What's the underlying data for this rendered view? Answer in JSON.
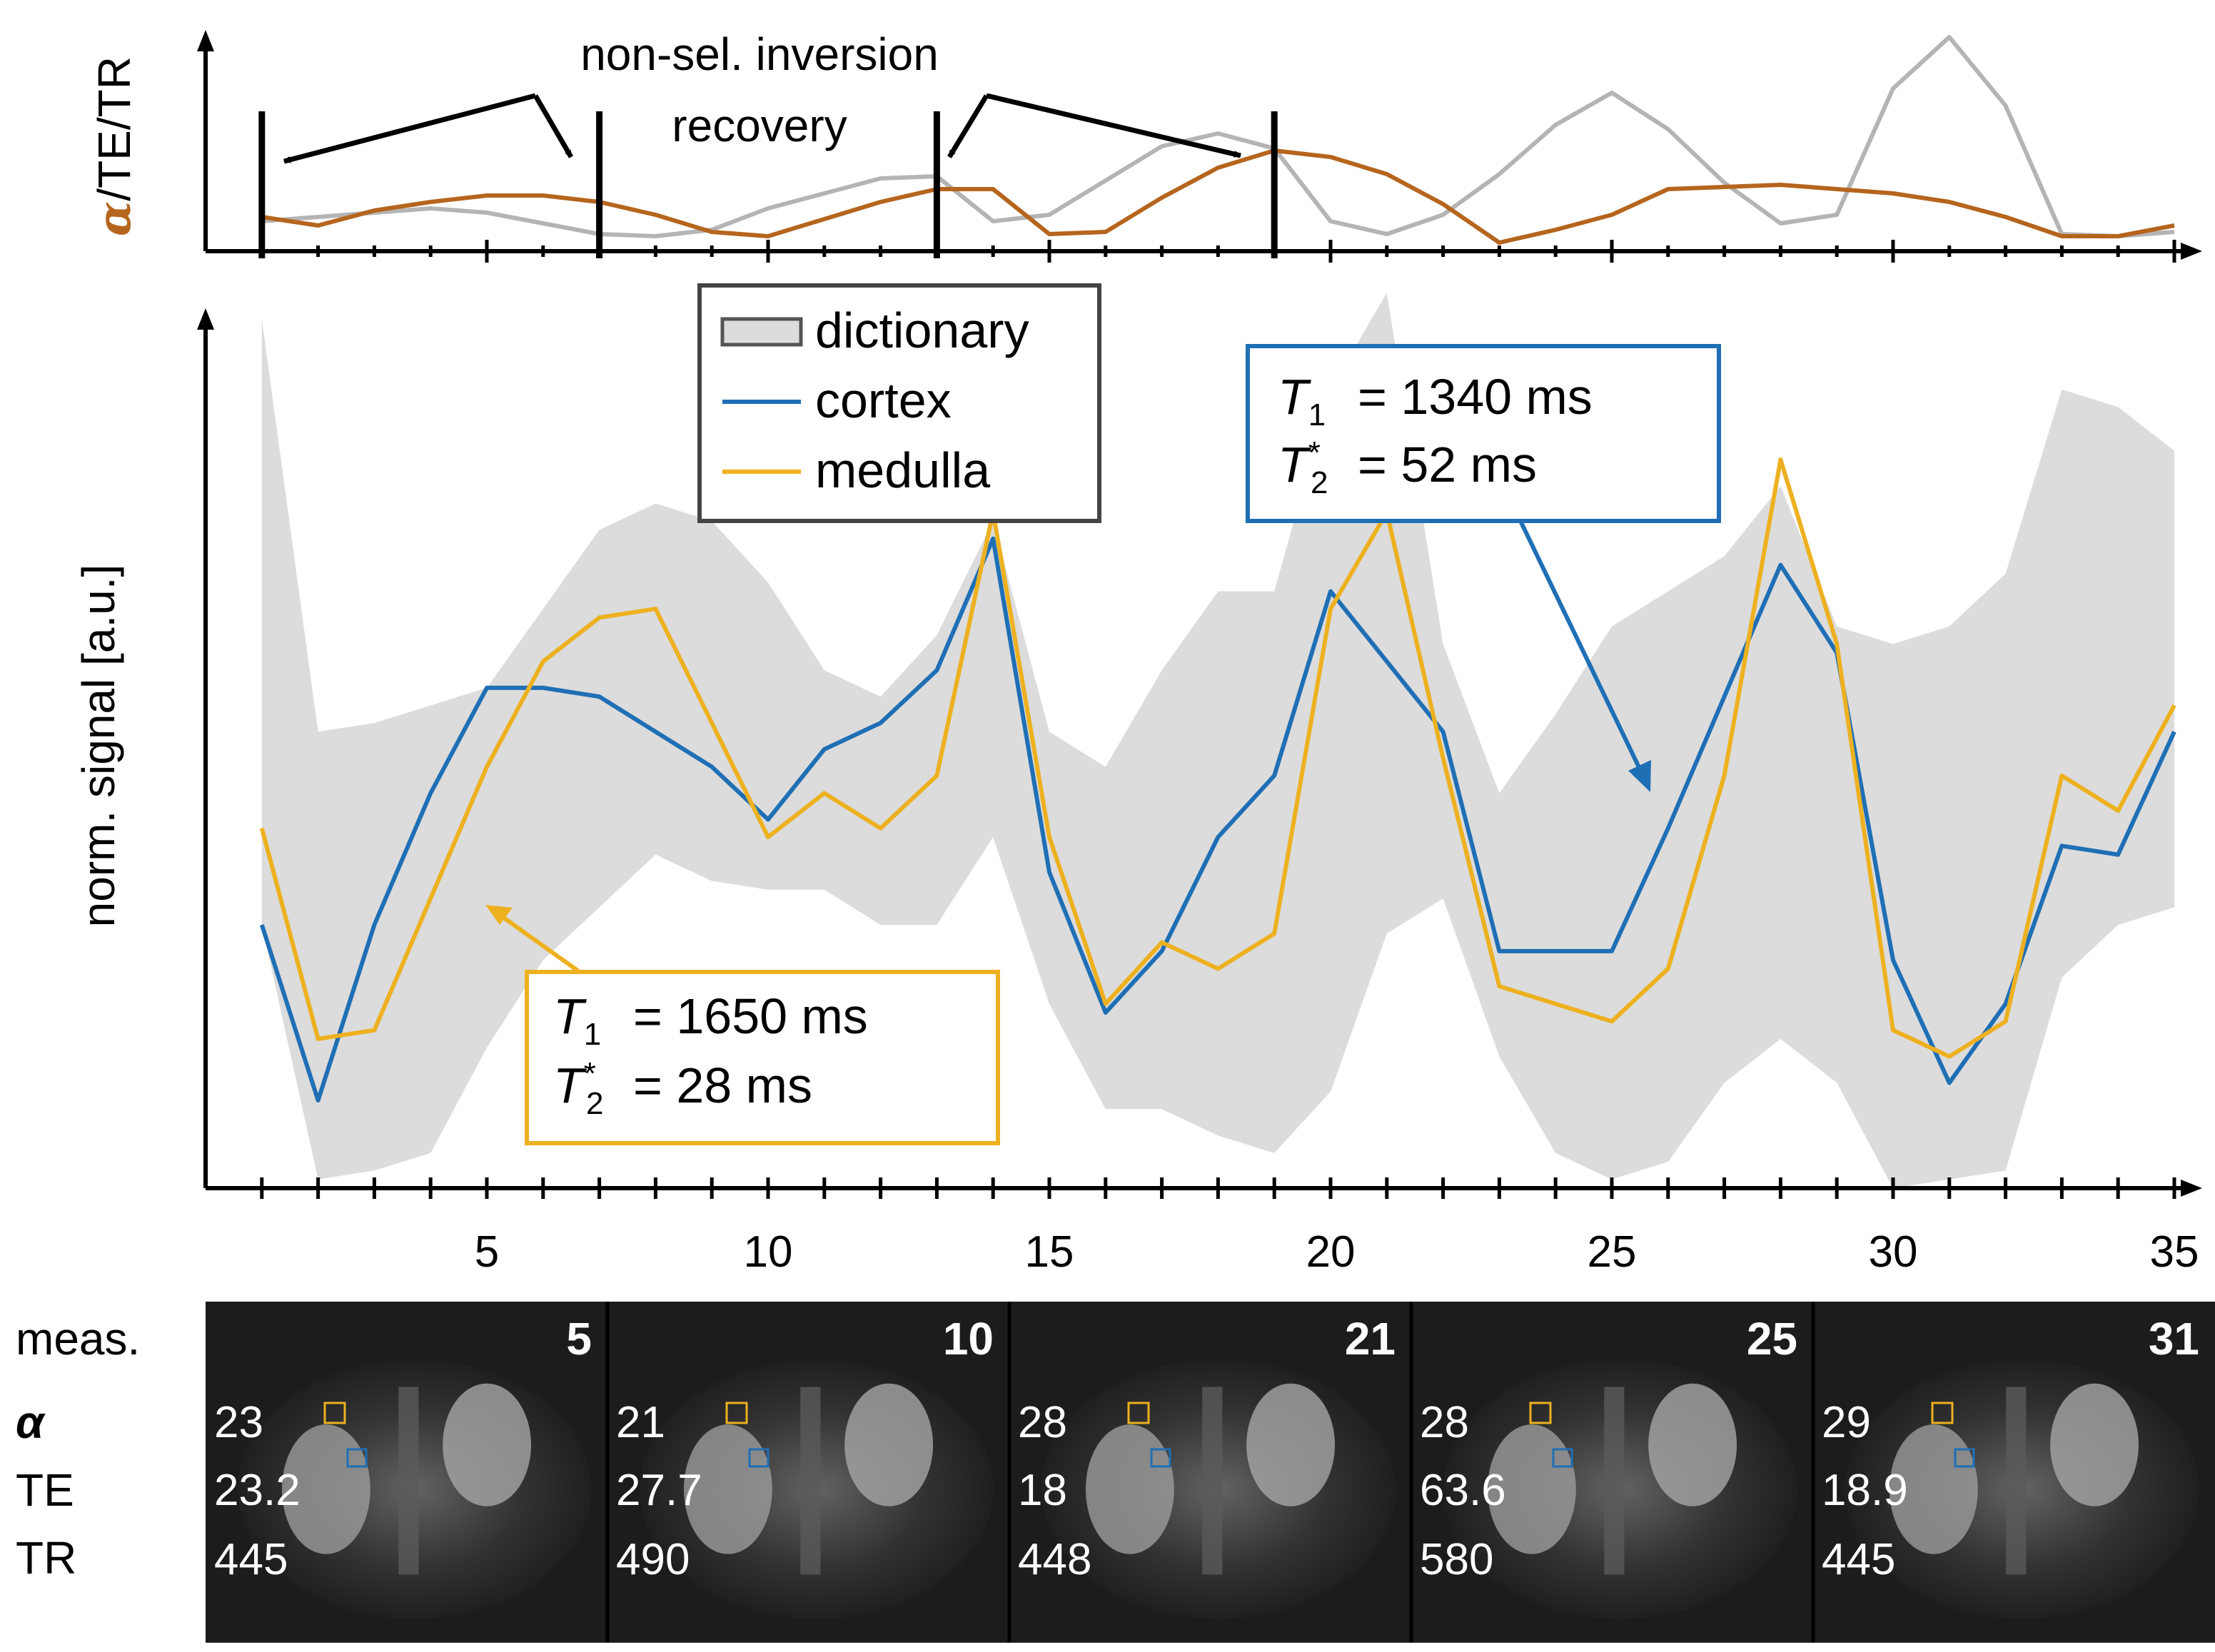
{
  "chart_data": [
    {
      "type": "line",
      "title": "",
      "ylabel_greek": "α",
      "ylabel_rest": "/TE/TR",
      "x": [
        1,
        2,
        3,
        4,
        5,
        6,
        7,
        8,
        9,
        10,
        11,
        12,
        13,
        14,
        15,
        16,
        17,
        18,
        19,
        20,
        21,
        22,
        23,
        24,
        25,
        26,
        27,
        28,
        29,
        30,
        31,
        32,
        33,
        34,
        35
      ],
      "ylim": [
        0,
        1
      ],
      "series": [
        {
          "name": "alpha",
          "color": "#B5651D",
          "values": [
            0.16,
            0.12,
            0.19,
            0.23,
            0.26,
            0.26,
            0.23,
            0.17,
            0.09,
            0.07,
            0.15,
            0.23,
            0.29,
            0.29,
            0.08,
            0.09,
            0.25,
            0.39,
            0.47,
            0.44,
            0.36,
            0.22,
            0.04,
            0.1,
            0.17,
            0.29,
            0.3,
            0.31,
            0.29,
            0.27,
            0.23,
            0.16,
            0.07,
            0.07,
            0.12
          ]
        },
        {
          "name": "TE/TR",
          "color": "#b4b4b4",
          "values": [
            0.14,
            0.16,
            0.18,
            0.2,
            0.18,
            0.13,
            0.08,
            0.07,
            0.1,
            0.2,
            0.27,
            0.34,
            0.35,
            0.14,
            0.17,
            0.33,
            0.49,
            0.55,
            0.48,
            0.14,
            0.08,
            0.17,
            0.36,
            0.59,
            0.74,
            0.57,
            0.32,
            0.13,
            0.17,
            0.76,
            1.0,
            0.68,
            0.08,
            0.07,
            0.09
          ]
        }
      ],
      "markers_x": [
        1,
        7,
        13,
        19
      ],
      "annotation_line1": "non-sel. inversion",
      "annotation_line2": "recovery"
    },
    {
      "type": "line",
      "title": "",
      "xlabel": "",
      "ylabel": "norm. signal [a.u.]",
      "x": [
        1,
        2,
        3,
        4,
        5,
        6,
        7,
        8,
        9,
        10,
        11,
        12,
        13,
        14,
        15,
        16,
        17,
        18,
        19,
        20,
        21,
        22,
        23,
        24,
        25,
        26,
        27,
        28,
        29,
        30,
        31,
        32,
        33,
        34,
        35
      ],
      "xticks": [
        5,
        10,
        15,
        20,
        25,
        30,
        35
      ],
      "xlim": [
        0,
        35
      ],
      "ylim": [
        0,
        1
      ],
      "band": {
        "name": "dictionary",
        "color": "#dcdcdc",
        "upper": [
          0.99,
          0.52,
          0.53,
          0.55,
          0.57,
          0.66,
          0.75,
          0.78,
          0.76,
          0.69,
          0.59,
          0.56,
          0.63,
          0.76,
          0.52,
          0.48,
          0.59,
          0.68,
          0.68,
          0.91,
          1.02,
          0.62,
          0.45,
          0.54,
          0.64,
          0.68,
          0.72,
          0.8,
          0.64,
          0.62,
          0.64,
          0.7,
          0.91,
          0.89,
          0.84
        ],
        "lower": [
          0.3,
          0.01,
          0.02,
          0.04,
          0.16,
          0.26,
          0.32,
          0.38,
          0.35,
          0.34,
          0.34,
          0.3,
          0.3,
          0.4,
          0.21,
          0.09,
          0.09,
          0.06,
          0.04,
          0.11,
          0.29,
          0.33,
          0.15,
          0.04,
          0.01,
          0.03,
          0.12,
          0.17,
          0.12,
          0.0,
          0.01,
          0.02,
          0.24,
          0.3,
          0.32
        ]
      },
      "series": [
        {
          "name": "cortex",
          "color": "#1f6fb5",
          "values": [
            0.3,
            0.1,
            0.3,
            0.45,
            0.57,
            0.57,
            0.56,
            0.52,
            0.48,
            0.42,
            0.5,
            0.53,
            0.59,
            0.74,
            0.36,
            0.2,
            0.27,
            0.4,
            0.47,
            0.68,
            0.6,
            0.52,
            0.27,
            0.27,
            0.27,
            0.41,
            0.56,
            0.71,
            0.61,
            0.26,
            0.12,
            0.21,
            0.39,
            0.38,
            0.52
          ]
        },
        {
          "name": "medulla",
          "color": "#EDB120",
          "values": [
            0.41,
            0.17,
            0.18,
            0.33,
            0.48,
            0.6,
            0.65,
            0.66,
            0.53,
            0.4,
            0.45,
            0.41,
            0.47,
            0.77,
            0.4,
            0.21,
            0.28,
            0.25,
            0.29,
            0.66,
            0.77,
            0.49,
            0.23,
            0.21,
            0.19,
            0.25,
            0.47,
            0.83,
            0.62,
            0.18,
            0.15,
            0.19,
            0.47,
            0.43,
            0.55
          ]
        }
      ],
      "legend": {
        "position": "top-center",
        "entries": [
          "dictionary",
          "cortex",
          "medulla"
        ]
      },
      "annotations": [
        {
          "color": "#1f6fb5",
          "symbol_a": "T",
          "sub_a": "1",
          "value_a": "= 1340 ms",
          "symbol_b": "T",
          "sub_b": "2",
          "sup_b": "*",
          "value_b": "= 52 ms"
        },
        {
          "color": "#EDB120",
          "symbol_a": "T",
          "sub_a": "1",
          "value_a": "= 1650 ms",
          "symbol_b": "T",
          "sub_b": "2",
          "sup_b": "*",
          "value_b": "= 28 ms"
        }
      ]
    }
  ],
  "image_strip": {
    "row_labels": {
      "meas": "meas.",
      "alpha": "α",
      "te": "TE",
      "tr": "TR"
    },
    "panels": [
      {
        "meas": "5",
        "alpha": "23",
        "te": "23.2",
        "tr": "445"
      },
      {
        "meas": "10",
        "alpha": "21",
        "te": "27.7",
        "tr": "490"
      },
      {
        "meas": "21",
        "alpha": "28",
        "te": "18",
        "tr": "448"
      },
      {
        "meas": "25",
        "alpha": "28",
        "te": "63.6",
        "tr": "580"
      },
      {
        "meas": "31",
        "alpha": "29",
        "te": "18.9",
        "tr": "445"
      }
    ],
    "roi_colors": {
      "medulla": "#EDB120",
      "cortex": "#1f6fb5"
    }
  }
}
